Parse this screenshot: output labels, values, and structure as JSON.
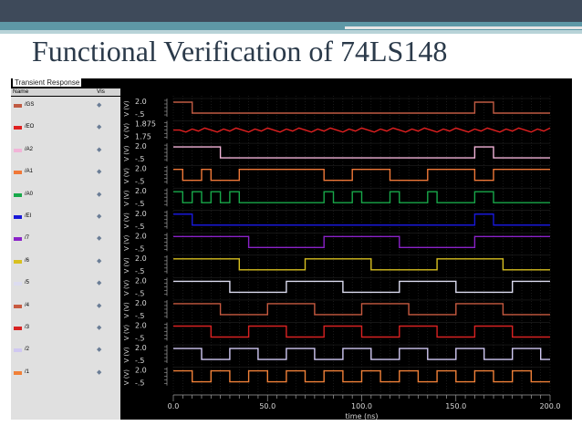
{
  "slide": {
    "title": "Functional Verification of 74LS148"
  },
  "panel": {
    "title": "Transient Response",
    "name_header": "Name",
    "vis_header": "Vis"
  },
  "colors": {
    "grid": "#2a2a2a",
    "axis": "#a0a0a0",
    "text": "#d8d8d8"
  },
  "chart_data": {
    "type": "line",
    "title": "Transient Response",
    "xlabel": "time (ns)",
    "x_ticks": [
      "0.0",
      "50.0",
      "100.0",
      "150.0",
      "200.0"
    ],
    "xlim": [
      0,
      200
    ],
    "series": [
      {
        "name": "/GS",
        "color": "#c05a42",
        "ylabel": "V (V)",
        "y_ticks": [
          "2.0",
          "-.5"
        ],
        "initial": 1,
        "toggles": [
          10,
          160,
          170
        ]
      },
      {
        "name": "/EO",
        "color": "#e02020",
        "ylabel": "V (V)",
        "y_ticks": [
          "1.875",
          "1.75"
        ],
        "initial": 1,
        "toggles": [],
        "noise": true
      },
      {
        "name": "/A2",
        "color": "#f2b4d8",
        "ylabel": "V (V)",
        "y_ticks": [
          "2.0",
          "-.5"
        ],
        "initial": 1,
        "toggles": [
          25,
          160,
          170
        ]
      },
      {
        "name": "/A1",
        "color": "#f07838",
        "ylabel": "V (V)",
        "y_ticks": [
          "2.0",
          "-.5"
        ],
        "initial": 1,
        "toggles": [
          5,
          15,
          20,
          35,
          80,
          95,
          115,
          135,
          160,
          170
        ]
      },
      {
        "name": "/A0",
        "color": "#18a84a",
        "ylabel": "V (V)",
        "y_ticks": [
          "2.0",
          "-.5"
        ],
        "initial": 1,
        "toggles": [
          5,
          10,
          15,
          20,
          25,
          30,
          35,
          80,
          85,
          95,
          100,
          115,
          120,
          135,
          140,
          160,
          170
        ]
      },
      {
        "name": "/EI",
        "color": "#1818d8",
        "ylabel": "V (V)",
        "y_ticks": [
          "2.0",
          "-.5"
        ],
        "initial": 1,
        "toggles": [
          10,
          160,
          170
        ]
      },
      {
        "name": "/7",
        "color": "#8a22c8",
        "ylabel": "V (V)",
        "y_ticks": [
          "2.0",
          "-.5"
        ],
        "initial": 1,
        "toggles": [
          40,
          80,
          120,
          160
        ]
      },
      {
        "name": "/6",
        "color": "#d8c020",
        "ylabel": "V (V)",
        "y_ticks": [
          "2.0",
          "-.5"
        ],
        "initial": 1,
        "toggles": [
          35,
          70,
          105,
          140,
          175
        ]
      },
      {
        "name": "/5",
        "color": "#dcdcf0",
        "ylabel": "V (V)",
        "y_ticks": [
          "2.0",
          "-.5"
        ],
        "initial": 1,
        "toggles": [
          30,
          60,
          90,
          120,
          150,
          180
        ]
      },
      {
        "name": "/4",
        "color": "#c85a40",
        "ylabel": "V (V)",
        "y_ticks": [
          "2.0",
          "-.5"
        ],
        "initial": 1,
        "toggles": [
          25,
          50,
          75,
          100,
          125,
          150,
          175
        ]
      },
      {
        "name": "/3",
        "color": "#d82222",
        "ylabel": "V (V)",
        "y_ticks": [
          "2.0",
          "-.5"
        ],
        "initial": 1,
        "toggles": [
          20,
          40,
          60,
          80,
          100,
          120,
          140,
          160,
          180
        ]
      },
      {
        "name": "/2",
        "color": "#d0c8f2",
        "ylabel": "V (V)",
        "y_ticks": [
          "2.0",
          "-.5"
        ],
        "initial": 1,
        "toggles": [
          15,
          30,
          45,
          60,
          75,
          90,
          105,
          120,
          135,
          150,
          165,
          180,
          195
        ]
      },
      {
        "name": "/1",
        "color": "#f08038",
        "ylabel": "V (V)",
        "y_ticks": [
          "2.0",
          "-.5"
        ],
        "initial": 1,
        "toggles": [
          10,
          20,
          30,
          40,
          50,
          60,
          70,
          80,
          90,
          100,
          110,
          120,
          130,
          140,
          150,
          160,
          170,
          180,
          190
        ]
      }
    ]
  }
}
